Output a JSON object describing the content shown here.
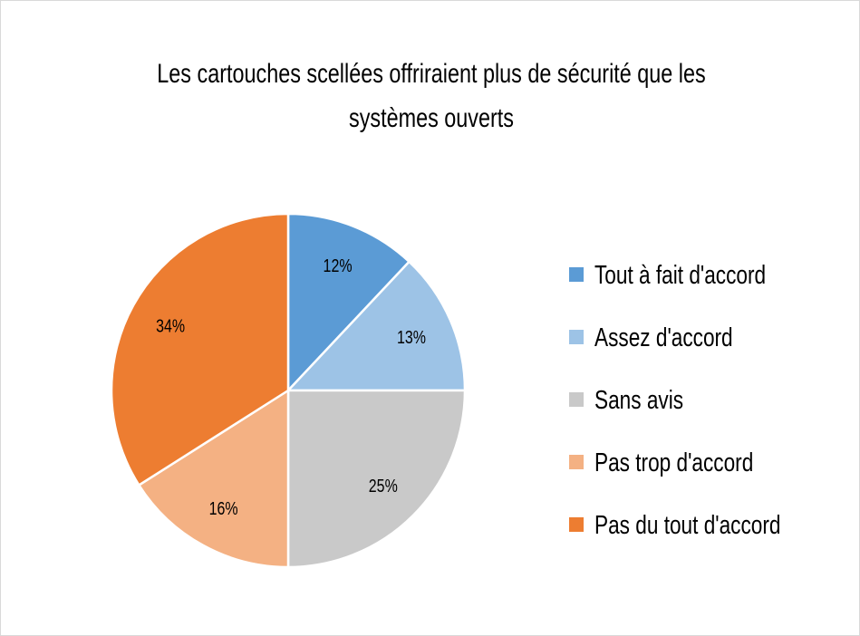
{
  "chart_data": {
    "type": "pie",
    "title": [
      "Les cartouches scellées offriraient plus de sécurité que les",
      "systèmes ouverts"
    ],
    "categories": [
      "Tout à fait d'accord",
      "Assez d'accord",
      "Sans avis",
      "Pas trop d'accord",
      "Pas du tout d'accord"
    ],
    "values": [
      12,
      13,
      25,
      16,
      34
    ],
    "data_labels": [
      "12%",
      "13%",
      "25%",
      "16%",
      "34%"
    ],
    "colors": [
      "#5B9BD5",
      "#9DC3E6",
      "#C9C9C9",
      "#F4B183",
      "#ED7D31"
    ],
    "legend_position": "right"
  }
}
